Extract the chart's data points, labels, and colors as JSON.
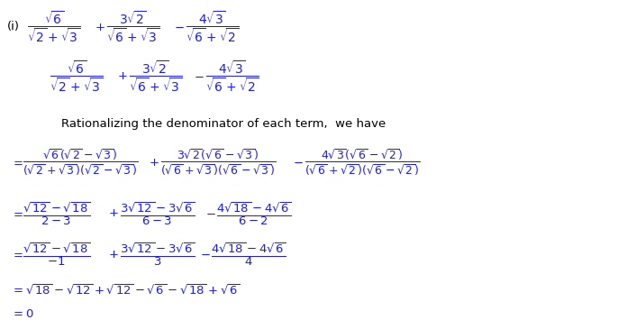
{
  "background_color": "#ffffff",
  "blue": "#1a1aff",
  "black": "#000000",
  "orange": "#cc6600",
  "figsize": [
    6.96,
    3.65
  ],
  "dpi": 100,
  "fs": 9.5
}
